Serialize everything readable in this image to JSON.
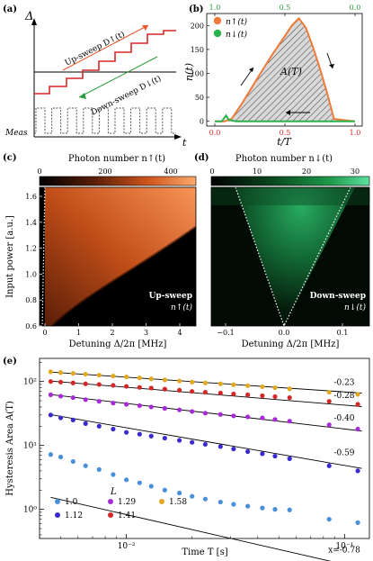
{
  "panel_labels": {
    "a": "(a)",
    "b": "(b)",
    "c": "(c)",
    "d": "(d)",
    "e": "(e)"
  },
  "panel_a": {
    "delta_symbol": "Δ",
    "t_symbol": "t",
    "up_label": "Up-sweep D↑(t)",
    "down_label": "Down-sweep D↓(t)",
    "meas_label": "Meas",
    "colors": {
      "staircase": "#d62728",
      "up_arrow": "#e8582a",
      "down_arrow": "#2a9d3a"
    }
  },
  "panel_b": {
    "ylabel": "n(t)",
    "xlabel": "t/T",
    "area_label": "A(T)",
    "legend": [
      "n↑(t)",
      "n↓(t)"
    ],
    "yticks": [
      "0",
      "50",
      "100",
      "150",
      "200"
    ],
    "xticks_bottom": [
      "0.0",
      "0.5",
      "1.0"
    ],
    "xticks_top": [
      "1.0",
      "0.5",
      "0.0"
    ],
    "colors": {
      "up": "#f07a3a",
      "down": "#2bb24c",
      "top_axis": "#2a9d3a",
      "bottom_axis": "#d62728"
    }
  },
  "panel_c": {
    "title": "Photon number n↑(t)",
    "cbar_ticks": [
      "0",
      "200",
      "400"
    ],
    "ylabel": "Input power [a.u.]",
    "yticks": [
      "0.6",
      "0.8",
      "1.0",
      "1.2",
      "1.4",
      "1.6"
    ],
    "xlabel": "Detuning Δ/2π [MHz]",
    "xticks": [
      "0",
      "1",
      "2",
      "3",
      "4"
    ],
    "tag1": "Up-sweep",
    "tag2": "n↑(t)"
  },
  "panel_d": {
    "title": "Photon number n↓(t)",
    "cbar_ticks": [
      "0",
      "10",
      "20",
      "30"
    ],
    "xlabel": "Detuning Δ/2π [MHz]",
    "xticks": [
      "−0.1",
      "0.0",
      "0.1"
    ],
    "tag1": "Down-sweep",
    "tag2": "n↓(t)"
  },
  "panel_e": {
    "ylabel": "Hysteresis Area A(T)",
    "xlabel": "Time T [s]",
    "legend_title": "L",
    "series": [
      {
        "name": "1.0",
        "color": "#4a90d9",
        "exponent": "x=-0.78",
        "T": [
          0.0045,
          0.005,
          0.0057,
          0.0065,
          0.0075,
          0.0087,
          0.01,
          0.0115,
          0.013,
          0.015,
          0.0175,
          0.02,
          0.023,
          0.027,
          0.031,
          0.036,
          0.042,
          0.048,
          0.056,
          0.085,
          0.115
        ],
        "A": [
          7.2,
          6.6,
          5.6,
          4.8,
          4.2,
          3.5,
          2.9,
          2.6,
          2.3,
          2.0,
          1.8,
          1.6,
          1.45,
          1.3,
          1.2,
          1.12,
          1.05,
          1.0,
          0.98,
          0.7,
          0.62
        ]
      },
      {
        "name": "1.12",
        "color": "#3a2ad0",
        "exponent": "-0.59",
        "T": [
          0.0045,
          0.005,
          0.0057,
          0.0065,
          0.0075,
          0.0087,
          0.01,
          0.0115,
          0.013,
          0.015,
          0.0175,
          0.02,
          0.023,
          0.027,
          0.031,
          0.036,
          0.042,
          0.048,
          0.056,
          0.085,
          0.115
        ],
        "A": [
          30,
          27,
          25,
          22,
          20,
          18,
          16,
          15,
          14,
          13,
          12,
          11.2,
          10.4,
          9.6,
          8.8,
          8.0,
          7.4,
          6.8,
          6.2,
          4.8,
          4.0
        ]
      },
      {
        "name": "1.29",
        "color": "#a62ad8",
        "exponent": "-0.40",
        "T": [
          0.0045,
          0.005,
          0.0057,
          0.0065,
          0.0075,
          0.0087,
          0.01,
          0.0115,
          0.013,
          0.015,
          0.0175,
          0.02,
          0.023,
          0.027,
          0.031,
          0.036,
          0.042,
          0.048,
          0.056,
          0.085,
          0.115
        ],
        "A": [
          62,
          59,
          56,
          52,
          49,
          46,
          44,
          42,
          40,
          38,
          36,
          34,
          32,
          30.5,
          29,
          28,
          27,
          25.5,
          24,
          21,
          18
        ]
      },
      {
        "name": "1.41",
        "color": "#d42828",
        "exponent": "-0.28",
        "T": [
          0.0045,
          0.005,
          0.0057,
          0.0065,
          0.0075,
          0.0087,
          0.01,
          0.0115,
          0.013,
          0.015,
          0.0175,
          0.02,
          0.023,
          0.027,
          0.031,
          0.036,
          0.042,
          0.048,
          0.056,
          0.085,
          0.115
        ],
        "A": [
          100,
          98,
          95,
          92,
          90,
          87,
          84,
          81,
          79,
          76,
          73,
          70,
          68,
          66,
          64,
          62,
          60,
          58,
          56,
          49,
          44
        ]
      },
      {
        "name": "1.58",
        "color": "#e0a91e",
        "exponent": "-0.23",
        "T": [
          0.0045,
          0.005,
          0.0057,
          0.0065,
          0.0075,
          0.0087,
          0.01,
          0.0115,
          0.013,
          0.015,
          0.0175,
          0.02,
          0.023,
          0.027,
          0.031,
          0.036,
          0.042,
          0.048,
          0.056,
          0.085,
          0.115
        ],
        "A": [
          142,
          138,
          134,
          130,
          126,
          122,
          118,
          114,
          110,
          106,
          102,
          98,
          95,
          92,
          89,
          86,
          83,
          80,
          77,
          68,
          63
        ]
      }
    ],
    "fits": [
      {
        "slope": -0.78,
        "A0": 0.0228
      },
      {
        "slope": -0.59,
        "A0": 1.25
      },
      {
        "slope": -0.4,
        "A0": 7.2
      },
      {
        "slope": -0.28,
        "A0": 22.4
      },
      {
        "slope": -0.23,
        "A0": 40.5
      }
    ]
  },
  "chart_data": [
    {
      "type": "line",
      "ylabel": "n(t)",
      "xlabel": "t/T",
      "xlim": [
        0,
        1
      ],
      "ylim": [
        -10,
        225
      ],
      "series": [
        {
          "name": "n↑(t)",
          "x": [
            0.0,
            0.07,
            0.12,
            0.2,
            0.3,
            0.4,
            0.5,
            0.55,
            0.6,
            0.65,
            0.7,
            0.75,
            0.8,
            0.85,
            1.0
          ],
          "y": [
            0,
            0,
            5,
            40,
            88,
            135,
            178,
            200,
            215,
            195,
            155,
            110,
            60,
            5,
            0
          ]
        },
        {
          "name": "n↓(t)",
          "x": [
            0.0,
            0.05,
            0.08,
            0.1,
            0.15,
            0.3,
            0.5,
            0.7,
            1.0
          ],
          "y": [
            0,
            0,
            12,
            3,
            0,
            0,
            0,
            0,
            0
          ]
        }
      ]
    },
    {
      "type": "scatter",
      "ylabel": "Hysteresis Area A(T)",
      "xlabel": "Time T [s]",
      "xlim": [
        0.004,
        0.13
      ],
      "ylim": [
        0.35,
        230
      ],
      "log_x": true,
      "log_y": true
    }
  ]
}
